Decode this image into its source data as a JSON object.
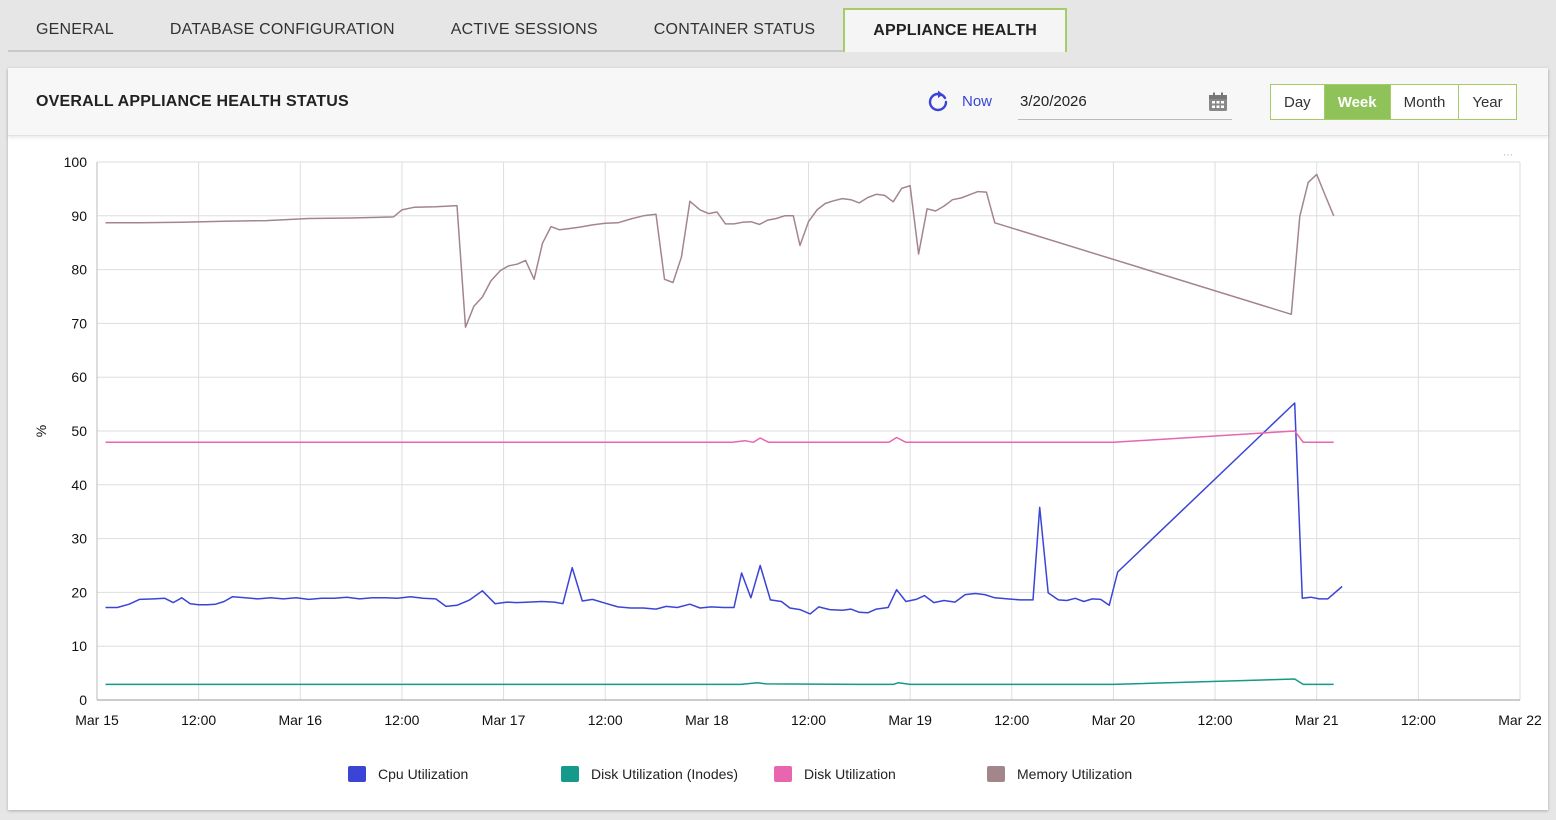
{
  "tabs": [
    {
      "label": "GENERAL",
      "active": false
    },
    {
      "label": "DATABASE CONFIGURATION",
      "active": false
    },
    {
      "label": "ACTIVE SESSIONS",
      "active": false
    },
    {
      "label": "CONTAINER STATUS",
      "active": false
    },
    {
      "label": "APPLIANCE HEALTH",
      "active": true
    }
  ],
  "header": {
    "title": "OVERALL APPLIANCE HEALTH STATUS",
    "refresh_icon": "refresh-icon",
    "now_label": "Now",
    "date_value": "3/20/2026",
    "calendar_icon": "calendar-icon"
  },
  "period_buttons": [
    {
      "label": "Day",
      "active": false
    },
    {
      "label": "Week",
      "active": true
    },
    {
      "label": "Month",
      "active": false
    },
    {
      "label": "Year",
      "active": false
    }
  ],
  "colors": {
    "accent_green": "#8fc258",
    "cpu": "#3a45d6",
    "disk_inodes": "#15998a",
    "disk": "#e865b0",
    "memory": "#a3868c"
  },
  "chart_data": {
    "type": "line",
    "ylabel": "%",
    "ylim": [
      0,
      100
    ],
    "y_ticks": [
      "0",
      "10",
      "20",
      "30",
      "40",
      "50",
      "60",
      "70",
      "80",
      "90",
      "100"
    ],
    "xlim_hours": [
      0,
      168
    ],
    "x_tick_labels": [
      "Mar 15",
      "12:00",
      "Mar 16",
      "12:00",
      "Mar 17",
      "12:00",
      "Mar 18",
      "12:00",
      "Mar 19",
      "12:00",
      "Mar 20",
      "12:00",
      "Mar 21",
      "12:00",
      "Mar 22"
    ],
    "grid": true,
    "legend_position": "bottom",
    "series": [
      {
        "name": "Cpu Utilization",
        "color": "#3a45d6",
        "points": [
          [
            1,
            17.2
          ],
          [
            2.4,
            17.2
          ],
          [
            3.8,
            17.8
          ],
          [
            5,
            18.7
          ],
          [
            6.7,
            18.8
          ],
          [
            8,
            18.9
          ],
          [
            9,
            18.1
          ],
          [
            10,
            19
          ],
          [
            11,
            17.9
          ],
          [
            12,
            17.7
          ],
          [
            13,
            17.7
          ],
          [
            14,
            17.8
          ],
          [
            15,
            18.3
          ],
          [
            16,
            19.2
          ],
          [
            17.5,
            19
          ],
          [
            19,
            18.8
          ],
          [
            20.5,
            19
          ],
          [
            22,
            18.8
          ],
          [
            23.5,
            19
          ],
          [
            25,
            18.7
          ],
          [
            26.5,
            18.9
          ],
          [
            28,
            18.9
          ],
          [
            29.5,
            19.1
          ],
          [
            31,
            18.8
          ],
          [
            32.5,
            19
          ],
          [
            34,
            19
          ],
          [
            35.5,
            18.9
          ],
          [
            37,
            19.2
          ],
          [
            38.5,
            18.9
          ],
          [
            40,
            18.8
          ],
          [
            41.2,
            17.4
          ],
          [
            42.5,
            17.6
          ],
          [
            44,
            18.6
          ],
          [
            45.5,
            20.3
          ],
          [
            47,
            17.9
          ],
          [
            48.4,
            18.2
          ],
          [
            49.5,
            18.1
          ],
          [
            51,
            18.2
          ],
          [
            52.5,
            18.3
          ],
          [
            54,
            18.2
          ],
          [
            55,
            17.9
          ],
          [
            56.1,
            24.6
          ],
          [
            57.3,
            18.4
          ],
          [
            58.5,
            18.7
          ],
          [
            60,
            18
          ],
          [
            61.5,
            17.3
          ],
          [
            63,
            17.1
          ],
          [
            64.5,
            17.1
          ],
          [
            66,
            16.9
          ],
          [
            67.2,
            17.4
          ],
          [
            68.5,
            17.2
          ],
          [
            70,
            17.8
          ],
          [
            71.2,
            17.1
          ],
          [
            72.5,
            17.3
          ],
          [
            74,
            17.2
          ],
          [
            75.2,
            17.2
          ],
          [
            76.1,
            23.6
          ],
          [
            77.2,
            19
          ],
          [
            78.3,
            25
          ],
          [
            79.5,
            18.6
          ],
          [
            80.8,
            18.3
          ],
          [
            81.8,
            17.1
          ],
          [
            83,
            16.8
          ],
          [
            84.2,
            16
          ],
          [
            85.2,
            17.3
          ],
          [
            86.5,
            16.8
          ],
          [
            88,
            16.7
          ],
          [
            89,
            16.9
          ],
          [
            90,
            16.3
          ],
          [
            91,
            16.2
          ],
          [
            92,
            16.9
          ],
          [
            93.4,
            17.2
          ],
          [
            94.4,
            20.5
          ],
          [
            95.5,
            18.3
          ],
          [
            96.7,
            18.7
          ],
          [
            97.7,
            19.4
          ],
          [
            98.8,
            18.1
          ],
          [
            100,
            18.5
          ],
          [
            101.3,
            18.2
          ],
          [
            102.5,
            19.6
          ],
          [
            103.7,
            19.8
          ],
          [
            104.8,
            19.6
          ],
          [
            106,
            19
          ],
          [
            107.5,
            18.8
          ],
          [
            109,
            18.6
          ],
          [
            110.5,
            18.6
          ],
          [
            111.3,
            35.8
          ],
          [
            112.3,
            19.9
          ],
          [
            113.5,
            18.6
          ],
          [
            114.5,
            18.5
          ],
          [
            115.5,
            18.9
          ],
          [
            116.5,
            18.3
          ],
          [
            117.5,
            18.8
          ],
          [
            118.5,
            18.7
          ],
          [
            119.5,
            17.6
          ],
          [
            120.5,
            23.8
          ],
          [
            141.4,
            55.2
          ],
          [
            142.3,
            18.9
          ],
          [
            143.3,
            19.1
          ],
          [
            144.3,
            18.8
          ],
          [
            145.3,
            18.8
          ],
          [
            147,
            21.1
          ]
        ]
      },
      {
        "name": "Disk Utilization (Inodes)",
        "color": "#15998a",
        "points": [
          [
            1,
            2.9
          ],
          [
            20,
            2.9
          ],
          [
            40,
            2.9
          ],
          [
            60,
            2.9
          ],
          [
            76,
            2.9
          ],
          [
            78,
            3.2
          ],
          [
            79,
            3
          ],
          [
            90,
            2.9
          ],
          [
            94,
            2.9
          ],
          [
            94.6,
            3.2
          ],
          [
            96,
            2.9
          ],
          [
            110,
            2.9
          ],
          [
            120,
            2.9
          ],
          [
            141.4,
            3.9
          ],
          [
            142.4,
            2.9
          ],
          [
            146,
            2.9
          ]
        ]
      },
      {
        "name": "Disk Utilization",
        "color": "#e865b0",
        "points": [
          [
            1,
            47.9
          ],
          [
            20,
            47.9
          ],
          [
            40,
            47.9
          ],
          [
            60,
            47.9
          ],
          [
            75,
            47.9
          ],
          [
            76.5,
            48.2
          ],
          [
            77.5,
            47.9
          ],
          [
            78.3,
            48.7
          ],
          [
            79.3,
            47.9
          ],
          [
            90,
            47.9
          ],
          [
            93.5,
            47.9
          ],
          [
            94.4,
            48.8
          ],
          [
            95.5,
            47.9
          ],
          [
            110,
            47.9
          ],
          [
            120,
            47.9
          ],
          [
            141.4,
            50
          ],
          [
            142.4,
            47.9
          ],
          [
            146,
            47.9
          ]
        ]
      },
      {
        "name": "Memory Utilization",
        "color": "#a3868c",
        "points": [
          [
            1,
            88.7
          ],
          [
            5,
            88.7
          ],
          [
            10,
            88.8
          ],
          [
            15,
            89
          ],
          [
            20,
            89.1
          ],
          [
            25,
            89.5
          ],
          [
            30,
            89.6
          ],
          [
            35,
            89.8
          ],
          [
            36,
            91.1
          ],
          [
            37.5,
            91.6
          ],
          [
            40,
            91.7
          ],
          [
            42.5,
            91.9
          ],
          [
            43.5,
            69.3
          ],
          [
            44.5,
            73.2
          ],
          [
            45.5,
            74.9
          ],
          [
            46.5,
            77.9
          ],
          [
            47.6,
            79.8
          ],
          [
            48.6,
            80.7
          ],
          [
            49.6,
            81
          ],
          [
            50.6,
            81.7
          ],
          [
            51.6,
            78.2
          ],
          [
            52.6,
            84.9
          ],
          [
            53.6,
            88
          ],
          [
            54.6,
            87.4
          ],
          [
            55.6,
            87.6
          ],
          [
            57,
            87.9
          ],
          [
            58.5,
            88.3
          ],
          [
            60,
            88.6
          ],
          [
            61.5,
            88.7
          ],
          [
            63,
            89.4
          ],
          [
            64.5,
            90
          ],
          [
            66,
            90.3
          ],
          [
            67,
            78.2
          ],
          [
            68,
            77.6
          ],
          [
            69,
            82.3
          ],
          [
            70,
            92.7
          ],
          [
            71.2,
            91.1
          ],
          [
            72.2,
            90.4
          ],
          [
            73.2,
            90.7
          ],
          [
            74.2,
            88.5
          ],
          [
            75.2,
            88.5
          ],
          [
            76.2,
            88.8
          ],
          [
            77.2,
            88.9
          ],
          [
            78.2,
            88.4
          ],
          [
            79.2,
            89.2
          ],
          [
            80.2,
            89.5
          ],
          [
            81.2,
            90
          ],
          [
            82.2,
            90
          ],
          [
            83,
            84.5
          ],
          [
            84,
            88.9
          ],
          [
            85,
            91.1
          ],
          [
            86,
            92.3
          ],
          [
            87,
            92.8
          ],
          [
            88,
            93.2
          ],
          [
            89,
            93
          ],
          [
            90,
            92.4
          ],
          [
            91,
            93.4
          ],
          [
            92,
            94
          ],
          [
            93,
            93.8
          ],
          [
            94,
            92.6
          ],
          [
            95,
            95.1
          ],
          [
            96,
            95.6
          ],
          [
            97,
            82.9
          ],
          [
            98,
            91.3
          ],
          [
            99,
            90.9
          ],
          [
            100,
            91.8
          ],
          [
            101,
            93
          ],
          [
            102,
            93.3
          ],
          [
            103,
            93.9
          ],
          [
            104,
            94.5
          ],
          [
            105,
            94.4
          ],
          [
            106,
            88.7
          ],
          [
            141,
            71.7
          ],
          [
            142,
            89.9
          ],
          [
            143,
            96.2
          ],
          [
            144,
            97.7
          ],
          [
            145,
            93.8
          ],
          [
            146,
            90
          ]
        ]
      }
    ]
  }
}
